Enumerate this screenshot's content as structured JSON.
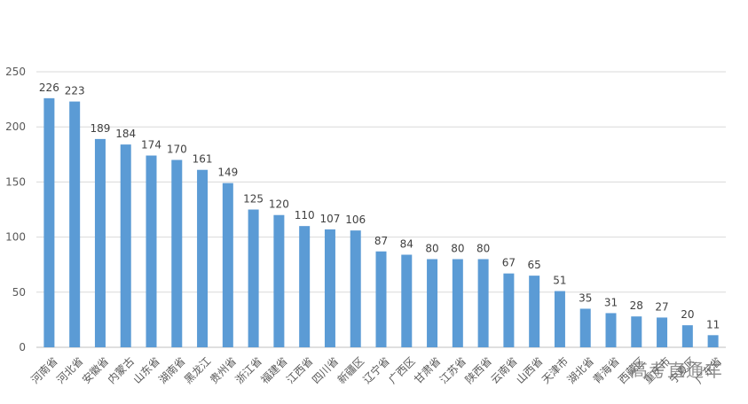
{
  "chart_data": {
    "type": "bar",
    "title": "",
    "xlabel": "",
    "ylabel": "",
    "ylim": [
      0,
      250
    ],
    "yticks": [
      0,
      50,
      100,
      150,
      200,
      250
    ],
    "grid": true,
    "bar_color": "#5b9bd5",
    "categories": [
      "河南省",
      "河北省",
      "安徽省",
      "内蒙古",
      "山东省",
      "湖南省",
      "黑龙江",
      "贵州省",
      "浙江省",
      "福建省",
      "江西省",
      "四川省",
      "新疆区",
      "辽宁省",
      "广西区",
      "甘肃省",
      "江苏省",
      "陕西省",
      "云南省",
      "山西省",
      "天津市",
      "湖北省",
      "青海省",
      "西藏区",
      "重庆市",
      "宁夏区",
      "广东省"
    ],
    "values": [
      226,
      223,
      189,
      184,
      174,
      170,
      161,
      149,
      125,
      120,
      110,
      107,
      106,
      87,
      84,
      80,
      80,
      80,
      67,
      65,
      51,
      35,
      31,
      28,
      27,
      20,
      11
    ]
  },
  "watermark": "高考直通车"
}
